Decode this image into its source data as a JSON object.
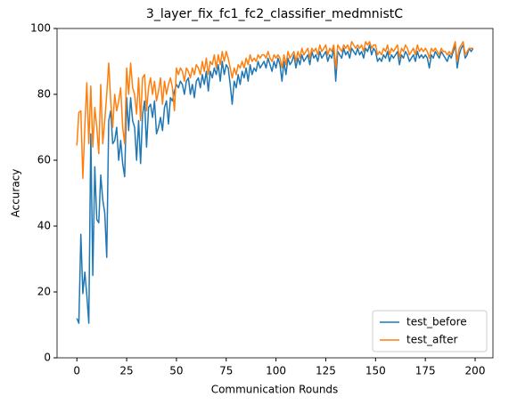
{
  "chart_data": {
    "type": "line",
    "title": "3_layer_fix_fc1_fc2_classifier_medmnistC",
    "xlabel": "Communication Rounds",
    "ylabel": "Accuracy",
    "x": [
      0,
      1,
      2,
      3,
      4,
      5,
      6,
      7,
      8,
      9,
      10,
      11,
      12,
      13,
      14,
      15,
      16,
      17,
      18,
      19,
      20,
      21,
      22,
      23,
      24,
      25,
      26,
      27,
      28,
      29,
      30,
      31,
      32,
      33,
      34,
      35,
      36,
      37,
      38,
      39,
      40,
      41,
      42,
      43,
      44,
      45,
      46,
      47,
      48,
      49,
      50,
      51,
      52,
      53,
      54,
      55,
      56,
      57,
      58,
      59,
      60,
      61,
      62,
      63,
      64,
      65,
      66,
      67,
      68,
      69,
      70,
      71,
      72,
      73,
      74,
      75,
      76,
      77,
      78,
      79,
      80,
      81,
      82,
      83,
      84,
      85,
      86,
      87,
      88,
      89,
      90,
      91,
      92,
      93,
      94,
      95,
      96,
      97,
      98,
      99,
      100,
      101,
      102,
      103,
      104,
      105,
      106,
      107,
      108,
      109,
      110,
      111,
      112,
      113,
      114,
      115,
      116,
      117,
      118,
      119,
      120,
      121,
      122,
      123,
      124,
      125,
      126,
      127,
      128,
      129,
      130,
      131,
      132,
      133,
      134,
      135,
      136,
      137,
      138,
      139,
      140,
      141,
      142,
      143,
      144,
      145,
      146,
      147,
      148,
      149,
      150,
      151,
      152,
      153,
      154,
      155,
      156,
      157,
      158,
      159,
      160,
      161,
      162,
      163,
      164,
      165,
      166,
      167,
      168,
      169,
      170,
      171,
      172,
      173,
      174,
      175,
      176,
      177,
      178,
      179,
      180,
      181,
      182,
      183,
      184,
      185,
      186,
      187,
      188,
      189,
      190,
      191,
      192,
      193,
      194,
      195,
      196,
      197,
      198,
      199
    ],
    "series": [
      {
        "name": "test_before",
        "color": "#1f77b4",
        "values": [
          12,
          10.5,
          37.5,
          19.5,
          26,
          19,
          10.5,
          68,
          25,
          58,
          42,
          41,
          55.5,
          48,
          44,
          30.5,
          72,
          75,
          65,
          66,
          70,
          60,
          66,
          59,
          55,
          79,
          69,
          79,
          72,
          70,
          60,
          72,
          59,
          74,
          78,
          64,
          76,
          77,
          73,
          78,
          68,
          70,
          73,
          69,
          76,
          78,
          71,
          79,
          78,
          81,
          83,
          82,
          84,
          83,
          80,
          84,
          85,
          80,
          83,
          79,
          84,
          85,
          82,
          86,
          83,
          87,
          81,
          87,
          85,
          88,
          86,
          89,
          84,
          90,
          86,
          89,
          88,
          83,
          77,
          84,
          82,
          86,
          83,
          87,
          85,
          88,
          84,
          89,
          86,
          88,
          87,
          90,
          88,
          89,
          90,
          88,
          91,
          89,
          87,
          90,
          88,
          91,
          89,
          84,
          90,
          86,
          91,
          89,
          90,
          92,
          88,
          91,
          89,
          92,
          90,
          91,
          92,
          89,
          93,
          91,
          92,
          90,
          93,
          91,
          92,
          93,
          90,
          92,
          91,
          94,
          84,
          93,
          92,
          91,
          94,
          92,
          93,
          91,
          94,
          93,
          92,
          94,
          92,
          93,
          91,
          94,
          93,
          95,
          92,
          94,
          93,
          90,
          91,
          90,
          92,
          91,
          93,
          90,
          92,
          91,
          92,
          93,
          89,
          92,
          91,
          93,
          92,
          90,
          91,
          92,
          90,
          93,
          91,
          92,
          91,
          92,
          91,
          88,
          92,
          91,
          93,
          92,
          91,
          93,
          92,
          91,
          90,
          92,
          91,
          93,
          95,
          88,
          92,
          94,
          95,
          91,
          92,
          94,
          93,
          94
        ]
      },
      {
        "name": "test_after",
        "color": "#ff7f0e",
        "values": [
          64.5,
          74.5,
          75,
          54.5,
          70,
          83.5,
          65,
          82.5,
          64,
          76,
          70,
          62,
          83,
          65,
          72,
          80,
          89.5,
          78,
          70,
          80,
          75,
          78,
          82,
          70,
          65,
          88,
          80,
          89.5,
          82,
          80,
          74,
          85,
          72,
          85,
          86,
          75,
          82,
          85,
          80,
          84,
          78,
          81,
          85,
          77,
          84,
          80,
          83,
          85,
          82,
          75,
          88,
          86,
          88,
          87,
          84,
          88,
          87,
          85,
          88,
          86,
          89,
          88,
          86,
          90,
          87,
          91,
          86,
          90,
          89,
          92,
          88,
          92,
          89,
          93,
          90,
          93,
          91,
          88,
          85,
          88,
          86,
          89,
          88,
          90,
          88,
          91,
          89,
          92,
          90,
          91,
          90,
          92,
          91,
          92,
          92,
          91,
          93,
          91,
          90,
          92,
          91,
          92,
          91,
          88,
          92,
          89,
          93,
          91,
          92,
          93,
          90,
          93,
          91,
          94,
          92,
          93,
          94,
          91,
          94,
          93,
          94,
          92,
          95,
          93,
          94,
          95,
          92,
          94,
          93,
          95,
          88,
          95,
          94,
          93,
          95,
          94,
          95,
          93,
          96,
          95,
          94,
          95,
          94,
          95,
          93,
          96,
          95,
          96,
          94,
          95,
          95,
          92,
          93,
          92,
          94,
          93,
          95,
          92,
          94,
          93,
          94,
          95,
          91,
          94,
          93,
          95,
          94,
          92,
          93,
          94,
          92,
          95,
          93,
          94,
          93,
          94,
          93,
          91,
          94,
          93,
          94,
          93,
          92,
          94,
          93,
          93,
          92,
          93,
          92,
          94,
          96,
          90,
          94,
          95,
          96,
          92,
          93,
          94,
          94,
          94
        ]
      }
    ],
    "xlim": [
      -9.95,
      208.95
    ],
    "xticks": [
      0,
      25,
      50,
      75,
      100,
      125,
      150,
      175,
      200
    ],
    "ylim": [
      0,
      100
    ],
    "yticks": [
      0,
      20,
      40,
      60,
      80,
      100
    ],
    "legend": "lower right"
  }
}
